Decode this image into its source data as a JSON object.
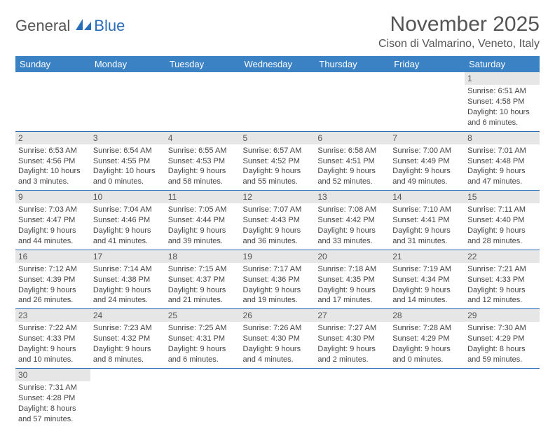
{
  "brand": {
    "name1": "General",
    "name2": "Blue"
  },
  "title": "November 2025",
  "location": "Cison di Valmarino, Veneto, Italy",
  "colors": {
    "header_bg": "#3b82c4",
    "header_text": "#ffffff",
    "border": "#2a6db8",
    "daynum_bg": "#e6e6e6",
    "text": "#444444"
  },
  "dayHeaders": [
    "Sunday",
    "Monday",
    "Tuesday",
    "Wednesday",
    "Thursday",
    "Friday",
    "Saturday"
  ],
  "weeks": [
    [
      null,
      null,
      null,
      null,
      null,
      null,
      {
        "n": "1",
        "sr": "Sunrise: 6:51 AM",
        "ss": "Sunset: 4:58 PM",
        "d1": "Daylight: 10 hours",
        "d2": "and 6 minutes."
      }
    ],
    [
      {
        "n": "2",
        "sr": "Sunrise: 6:53 AM",
        "ss": "Sunset: 4:56 PM",
        "d1": "Daylight: 10 hours",
        "d2": "and 3 minutes."
      },
      {
        "n": "3",
        "sr": "Sunrise: 6:54 AM",
        "ss": "Sunset: 4:55 PM",
        "d1": "Daylight: 10 hours",
        "d2": "and 0 minutes."
      },
      {
        "n": "4",
        "sr": "Sunrise: 6:55 AM",
        "ss": "Sunset: 4:53 PM",
        "d1": "Daylight: 9 hours",
        "d2": "and 58 minutes."
      },
      {
        "n": "5",
        "sr": "Sunrise: 6:57 AM",
        "ss": "Sunset: 4:52 PM",
        "d1": "Daylight: 9 hours",
        "d2": "and 55 minutes."
      },
      {
        "n": "6",
        "sr": "Sunrise: 6:58 AM",
        "ss": "Sunset: 4:51 PM",
        "d1": "Daylight: 9 hours",
        "d2": "and 52 minutes."
      },
      {
        "n": "7",
        "sr": "Sunrise: 7:00 AM",
        "ss": "Sunset: 4:49 PM",
        "d1": "Daylight: 9 hours",
        "d2": "and 49 minutes."
      },
      {
        "n": "8",
        "sr": "Sunrise: 7:01 AM",
        "ss": "Sunset: 4:48 PM",
        "d1": "Daylight: 9 hours",
        "d2": "and 47 minutes."
      }
    ],
    [
      {
        "n": "9",
        "sr": "Sunrise: 7:03 AM",
        "ss": "Sunset: 4:47 PM",
        "d1": "Daylight: 9 hours",
        "d2": "and 44 minutes."
      },
      {
        "n": "10",
        "sr": "Sunrise: 7:04 AM",
        "ss": "Sunset: 4:46 PM",
        "d1": "Daylight: 9 hours",
        "d2": "and 41 minutes."
      },
      {
        "n": "11",
        "sr": "Sunrise: 7:05 AM",
        "ss": "Sunset: 4:44 PM",
        "d1": "Daylight: 9 hours",
        "d2": "and 39 minutes."
      },
      {
        "n": "12",
        "sr": "Sunrise: 7:07 AM",
        "ss": "Sunset: 4:43 PM",
        "d1": "Daylight: 9 hours",
        "d2": "and 36 minutes."
      },
      {
        "n": "13",
        "sr": "Sunrise: 7:08 AM",
        "ss": "Sunset: 4:42 PM",
        "d1": "Daylight: 9 hours",
        "d2": "and 33 minutes."
      },
      {
        "n": "14",
        "sr": "Sunrise: 7:10 AM",
        "ss": "Sunset: 4:41 PM",
        "d1": "Daylight: 9 hours",
        "d2": "and 31 minutes."
      },
      {
        "n": "15",
        "sr": "Sunrise: 7:11 AM",
        "ss": "Sunset: 4:40 PM",
        "d1": "Daylight: 9 hours",
        "d2": "and 28 minutes."
      }
    ],
    [
      {
        "n": "16",
        "sr": "Sunrise: 7:12 AM",
        "ss": "Sunset: 4:39 PM",
        "d1": "Daylight: 9 hours",
        "d2": "and 26 minutes."
      },
      {
        "n": "17",
        "sr": "Sunrise: 7:14 AM",
        "ss": "Sunset: 4:38 PM",
        "d1": "Daylight: 9 hours",
        "d2": "and 24 minutes."
      },
      {
        "n": "18",
        "sr": "Sunrise: 7:15 AM",
        "ss": "Sunset: 4:37 PM",
        "d1": "Daylight: 9 hours",
        "d2": "and 21 minutes."
      },
      {
        "n": "19",
        "sr": "Sunrise: 7:17 AM",
        "ss": "Sunset: 4:36 PM",
        "d1": "Daylight: 9 hours",
        "d2": "and 19 minutes."
      },
      {
        "n": "20",
        "sr": "Sunrise: 7:18 AM",
        "ss": "Sunset: 4:35 PM",
        "d1": "Daylight: 9 hours",
        "d2": "and 17 minutes."
      },
      {
        "n": "21",
        "sr": "Sunrise: 7:19 AM",
        "ss": "Sunset: 4:34 PM",
        "d1": "Daylight: 9 hours",
        "d2": "and 14 minutes."
      },
      {
        "n": "22",
        "sr": "Sunrise: 7:21 AM",
        "ss": "Sunset: 4:33 PM",
        "d1": "Daylight: 9 hours",
        "d2": "and 12 minutes."
      }
    ],
    [
      {
        "n": "23",
        "sr": "Sunrise: 7:22 AM",
        "ss": "Sunset: 4:33 PM",
        "d1": "Daylight: 9 hours",
        "d2": "and 10 minutes."
      },
      {
        "n": "24",
        "sr": "Sunrise: 7:23 AM",
        "ss": "Sunset: 4:32 PM",
        "d1": "Daylight: 9 hours",
        "d2": "and 8 minutes."
      },
      {
        "n": "25",
        "sr": "Sunrise: 7:25 AM",
        "ss": "Sunset: 4:31 PM",
        "d1": "Daylight: 9 hours",
        "d2": "and 6 minutes."
      },
      {
        "n": "26",
        "sr": "Sunrise: 7:26 AM",
        "ss": "Sunset: 4:30 PM",
        "d1": "Daylight: 9 hours",
        "d2": "and 4 minutes."
      },
      {
        "n": "27",
        "sr": "Sunrise: 7:27 AM",
        "ss": "Sunset: 4:30 PM",
        "d1": "Daylight: 9 hours",
        "d2": "and 2 minutes."
      },
      {
        "n": "28",
        "sr": "Sunrise: 7:28 AM",
        "ss": "Sunset: 4:29 PM",
        "d1": "Daylight: 9 hours",
        "d2": "and 0 minutes."
      },
      {
        "n": "29",
        "sr": "Sunrise: 7:30 AM",
        "ss": "Sunset: 4:29 PM",
        "d1": "Daylight: 8 hours",
        "d2": "and 59 minutes."
      }
    ],
    [
      {
        "n": "30",
        "sr": "Sunrise: 7:31 AM",
        "ss": "Sunset: 4:28 PM",
        "d1": "Daylight: 8 hours",
        "d2": "and 57 minutes."
      },
      null,
      null,
      null,
      null,
      null,
      null
    ]
  ]
}
